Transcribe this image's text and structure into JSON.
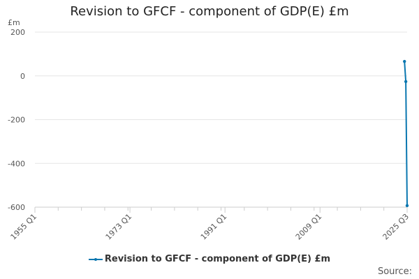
{
  "chart_data": {
    "type": "line",
    "title": "Revision to GFCF - component of GDP(E) £m",
    "ylabel": "£m",
    "xlabel": "",
    "ylim": [
      -600,
      200
    ],
    "yticks": [
      200,
      0,
      -200,
      -400,
      -600
    ],
    "xtick_labels": [
      "1955 Q1",
      "1973 Q1",
      "1991 Q1",
      "2009 Q1",
      "2025 Q3"
    ],
    "grid": true,
    "legend_position": "bottom",
    "series": [
      {
        "name": "Revision to GFCF - component of GDP(E) £m",
        "color": "#0a77b0",
        "x": [
          "2025 Q1",
          "2025 Q2",
          "2025 Q3"
        ],
        "values": [
          66,
          -26,
          -593
        ]
      }
    ]
  },
  "source_label": "Source:"
}
